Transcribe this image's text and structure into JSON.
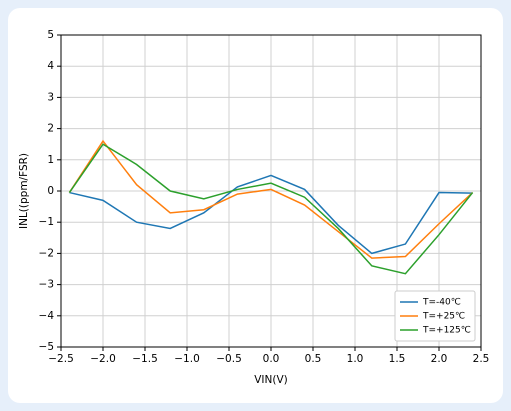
{
  "chart_data": {
    "type": "line",
    "x_label": "VIN(V)",
    "y_label": "INL((ppm/FSR)",
    "x": [
      -2.4,
      -2.0,
      -1.6,
      -1.2,
      -0.8,
      -0.4,
      0,
      0.4,
      0.8,
      1.2,
      1.6,
      2.0,
      2.4
    ],
    "series": [
      {
        "name": "T=-40℃",
        "color": "#1f77b4",
        "values": [
          -0.05,
          -0.3,
          -1.0,
          -1.2,
          -0.7,
          0.13,
          0.5,
          0.05,
          -1.1,
          -2.0,
          -1.7,
          -0.05,
          -0.07
        ]
      },
      {
        "name": "T=+25℃",
        "color": "#ff7f0e",
        "values": [
          -0.05,
          1.6,
          0.2,
          -0.7,
          -0.6,
          -0.1,
          0.05,
          -0.45,
          -1.3,
          -2.15,
          -2.1,
          -1.05,
          -0.05
        ]
      },
      {
        "name": "T=+125℃",
        "color": "#2ca02c",
        "values": [
          -0.05,
          1.5,
          0.85,
          0.0,
          -0.25,
          0.05,
          0.25,
          -0.2,
          -1.2,
          -2.4,
          -2.65,
          -1.4,
          -0.05
        ]
      }
    ],
    "xlim": [
      -2.5,
      2.5
    ],
    "xticks": [
      {
        "value": -2.5,
        "label": "−2.5"
      },
      {
        "value": -2.0,
        "label": "−2.0"
      },
      {
        "value": -1.5,
        "label": "−1.5"
      },
      {
        "value": -1.0,
        "label": "−1.0"
      },
      {
        "value": -0.5,
        "label": "−0.5"
      },
      {
        "value": 0,
        "label": "0.0"
      },
      0.5,
      {
        "value": 1,
        "label": "1.0"
      },
      1.5,
      {
        "value": 2,
        "label": "2.0"
      },
      2.5
    ],
    "ylim": [
      -5,
      5
    ],
    "yticks": [
      {
        "value": -5,
        "label": "−5"
      },
      {
        "value": -4,
        "label": "−4"
      },
      {
        "value": -3,
        "label": "−3"
      },
      {
        "value": -2,
        "label": "−2"
      },
      {
        "value": -1,
        "label": "−1"
      },
      0,
      1,
      2,
      3,
      4,
      5
    ],
    "grid": true,
    "legend": "lower right"
  }
}
